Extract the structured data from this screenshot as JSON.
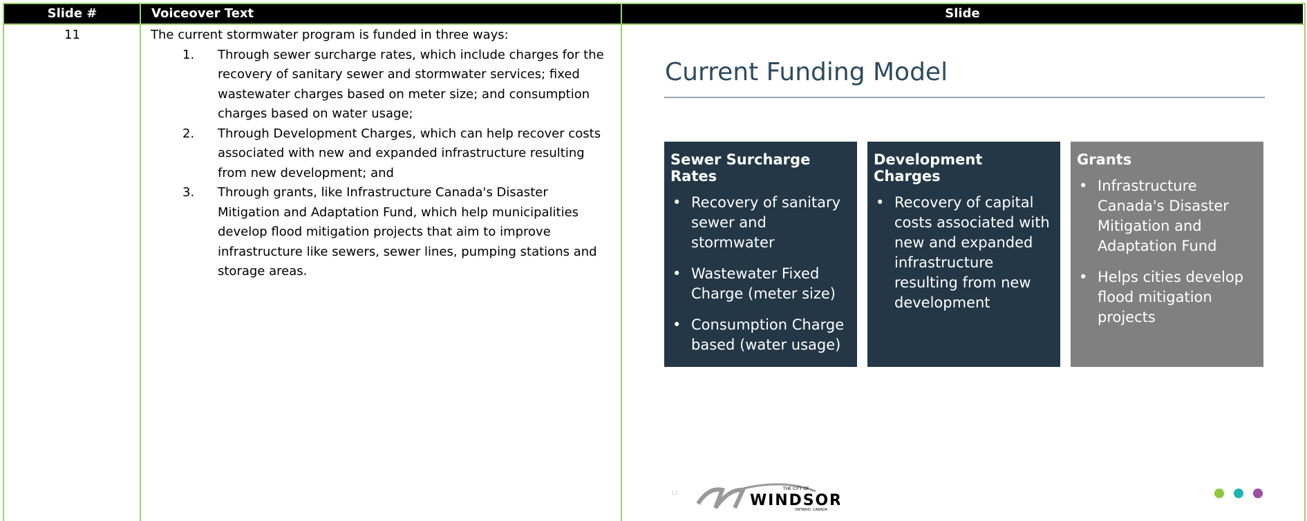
{
  "header": {
    "columns": [
      "Slide #",
      "Voiceover Text",
      "Slide"
    ]
  },
  "rows": [
    {
      "slide_number": "11",
      "voiceover": {
        "intro": "The current stormwater program is funded in three ways:",
        "items": [
          {
            "number": "1.",
            "text": "Through sewer surcharge rates, which include charges for the recovery of sanitary sewer and stormwater services; fixed wastewater charges based on meter size; and consumption charges based on water usage;"
          },
          {
            "number": "2.",
            "text": "Through Development Charges, which can help recover costs associated with new and expanded infrastructure resulting from new development; and"
          },
          {
            "number": "3.",
            "text": "Through grants, like Infrastructure Canada's Disaster Mitigation and Adaptation Fund, which help municipalities develop flood mitigation projects that aim to improve infrastructure like sewers, sewer lines, pumping stations and storage areas."
          }
        ]
      },
      "slide": {
        "title": "Current Funding Model",
        "boxes": [
          {
            "heading": "Sewer Surcharge Rates",
            "bullets": [
              "Recovery of sanitary sewer and stormwater",
              "Wastewater Fixed Charge (meter size)",
              "Consumption Charge based (water usage)"
            ]
          },
          {
            "heading": "Development Charges",
            "bullets": [
              "Recovery of capital costs associated with new and expanded infrastructure resulting from new development"
            ]
          },
          {
            "heading": "Grants",
            "bullets": [
              "Infrastructure Canada's Disaster Mitigation and Adaptation Fund",
              "Helps cities develop flood mitigation projects"
            ]
          }
        ],
        "page_number": "11",
        "logo": {
          "top": "THE CITY OF",
          "name": "WINDSOR",
          "bottom": "ONTARIO, CANADA"
        }
      }
    }
  ]
}
